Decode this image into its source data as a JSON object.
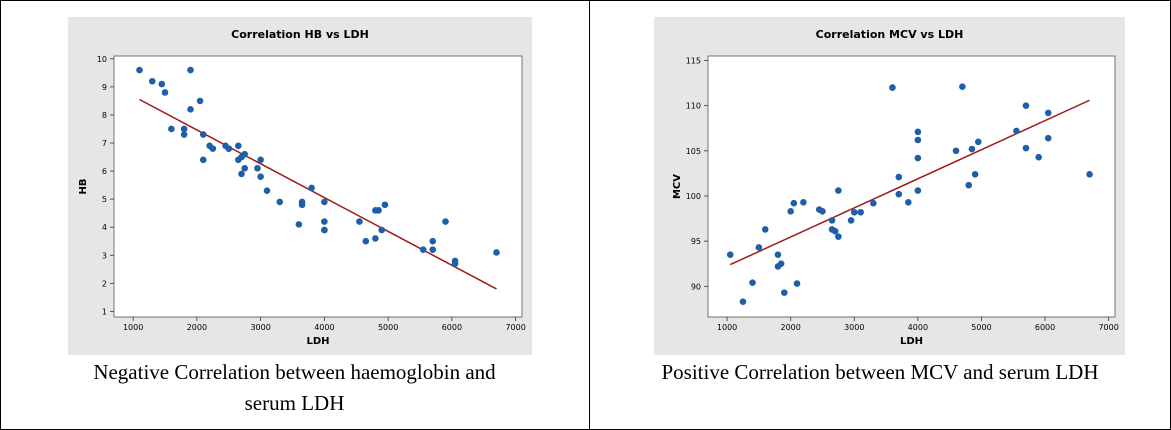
{
  "chart_data": [
    {
      "type": "scatter",
      "title": "Correlation HB vs LDH",
      "xlabel": "LDH",
      "ylabel": "HB",
      "xlim": [
        700,
        7100
      ],
      "ylim": [
        0.8,
        10.1
      ],
      "xticks": [
        1000,
        2000,
        3000,
        4000,
        5000,
        6000,
        7000
      ],
      "yticks": [
        1,
        2,
        3,
        4,
        5,
        6,
        7,
        8,
        9,
        10
      ],
      "grid": false,
      "point_color": "#1f5fa8",
      "line_color": "#a01818",
      "fit_line": {
        "x": [
          1100,
          6700
        ],
        "y": [
          8.55,
          1.8
        ]
      },
      "x": [
        1100,
        1300,
        1450,
        1500,
        1600,
        1800,
        1800,
        1900,
        1900,
        2050,
        2100,
        2100,
        2200,
        2250,
        2450,
        2500,
        2500,
        2650,
        2650,
        2700,
        2700,
        2750,
        2750,
        2950,
        3000,
        3000,
        3100,
        3300,
        3600,
        3650,
        3650,
        3800,
        4000,
        4000,
        4000,
        4000,
        4550,
        4650,
        4800,
        4800,
        4850,
        4900,
        4950,
        5550,
        5700,
        5700,
        5900,
        6050,
        6050,
        6700
      ],
      "y": [
        9.6,
        9.2,
        9.1,
        8.8,
        7.5,
        7.5,
        7.3,
        9.6,
        8.2,
        8.5,
        7.3,
        6.4,
        6.9,
        6.8,
        6.9,
        6.8,
        6.8,
        6.9,
        6.4,
        6.5,
        5.9,
        6.6,
        6.1,
        6.1,
        6.4,
        5.8,
        5.3,
        4.9,
        4.1,
        4.9,
        4.8,
        5.4,
        4.9,
        4.2,
        3.9,
        3.9,
        4.2,
        3.5,
        3.6,
        4.6,
        4.6,
        3.9,
        4.8,
        3.2,
        3.2,
        3.5,
        4.2,
        2.8,
        2.7,
        3.1
      ]
    },
    {
      "type": "scatter",
      "title": "Correlation  MCV vs LDH",
      "xlabel": "LDH",
      "ylabel": "MCV",
      "xlim": [
        700,
        7100
      ],
      "ylim": [
        86.6,
        115.5
      ],
      "xticks": [
        1000,
        2000,
        3000,
        4000,
        5000,
        6000,
        7000
      ],
      "yticks": [
        90,
        95,
        100,
        105,
        110,
        115
      ],
      "grid": false,
      "point_color": "#1f5fa8",
      "line_color": "#a01818",
      "fit_line": {
        "x": [
          1050,
          6700
        ],
        "y": [
          92.4,
          110.6
        ]
      },
      "x": [
        1050,
        1250,
        1400,
        1500,
        1600,
        1800,
        1800,
        1850,
        1900,
        2000,
        2050,
        2100,
        2200,
        2450,
        2500,
        2650,
        2650,
        2700,
        2750,
        2750,
        2950,
        3000,
        3100,
        3300,
        3600,
        3700,
        3700,
        3850,
        4000,
        4000,
        4000,
        4000,
        4600,
        4700,
        4800,
        4850,
        4900,
        4950,
        5550,
        5700,
        5700,
        5900,
        6050,
        6050,
        6700
      ],
      "y": [
        93.5,
        88.3,
        90.4,
        94.3,
        96.3,
        92.2,
        93.5,
        92.5,
        89.3,
        98.3,
        99.2,
        90.3,
        99.3,
        98.5,
        98.3,
        97.3,
        96.3,
        96.1,
        100.6,
        95.5,
        97.3,
        98.2,
        98.2,
        99.2,
        112.0,
        100.2,
        102.1,
        99.3,
        100.6,
        104.2,
        106.2,
        107.1,
        105.0,
        112.1,
        101.2,
        105.2,
        102.4,
        106.0,
        107.2,
        105.3,
        110.0,
        104.3,
        106.4,
        109.2,
        102.4
      ]
    }
  ],
  "captions": {
    "left_line1": "Negative Correlation between haemoglobin and",
    "left_line2": "serum LDH",
    "right": "Positive Correlation between MCV and serum LDH"
  }
}
